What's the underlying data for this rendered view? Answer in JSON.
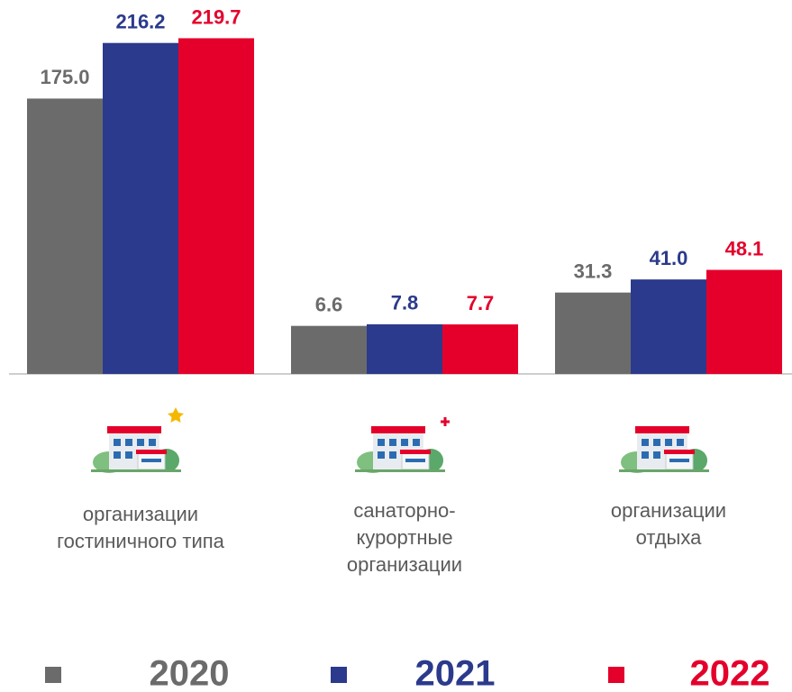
{
  "chart_data": {
    "type": "bar",
    "categories": [
      "организации гостиничного типа",
      "санаторно-курортные организации",
      "организации отдыха"
    ],
    "series": [
      {
        "name": "2020",
        "color": "#6b6b6b",
        "values": [
          175.0,
          6.6,
          31.3
        ],
        "value_labels": [
          "175.0",
          "6.6",
          "31.3"
        ]
      },
      {
        "name": "2021",
        "color": "#2b3a8c",
        "values": [
          216.2,
          7.8,
          41.0
        ],
        "value_labels": [
          "216.2",
          "7.8",
          "41.0"
        ]
      },
      {
        "name": "2022",
        "color": "#e4002b",
        "values": [
          219.7,
          7.7,
          48.1
        ],
        "value_labels": [
          "219.7",
          "7.7",
          "48.1"
        ]
      }
    ],
    "ylim": [
      -29,
      226
    ],
    "legend": "bottom"
  }
}
